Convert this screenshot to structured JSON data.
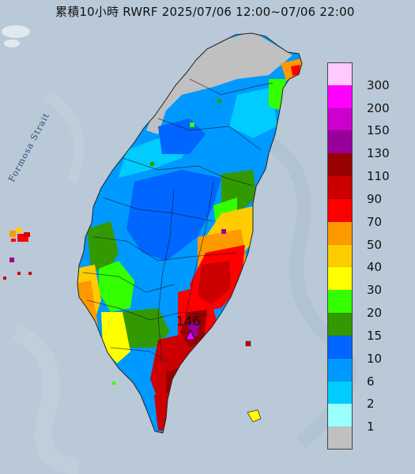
{
  "title": "累積10小時 RWRF 2025/07/06 12:00~07/06 22:00",
  "strait_label": "Formosa Strait",
  "peak": {
    "value": "146",
    "marker_color": "#ff00ff"
  },
  "legend": {
    "items": [
      {
        "label": "300",
        "color": "#ffc9ff"
      },
      {
        "label": "200",
        "color": "#ff00ff"
      },
      {
        "label": "150",
        "color": "#cc00cc"
      },
      {
        "label": "130",
        "color": "#990099"
      },
      {
        "label": "110",
        "color": "#990000"
      },
      {
        "label": "90",
        "color": "#cc0000"
      },
      {
        "label": "70",
        "color": "#ff0000"
      },
      {
        "label": "50",
        "color": "#ff9900"
      },
      {
        "label": "40",
        "color": "#ffcc00"
      },
      {
        "label": "30",
        "color": "#ffff00"
      },
      {
        "label": "20",
        "color": "#33ff00"
      },
      {
        "label": "15",
        "color": "#339900"
      },
      {
        "label": "10",
        "color": "#0066ff"
      },
      {
        "label": "6",
        "color": "#0099ff"
      },
      {
        "label": "2",
        "color": "#00ccff"
      },
      {
        "label": "1",
        "color": "#99ffff"
      },
      {
        "label": "",
        "color": "#c0c0c0"
      }
    ]
  },
  "colors": {
    "sea": "#b9c9d8",
    "land_gray": "#c0c0c0",
    "blue": "#0099ff",
    "dark_blue": "#0066ff",
    "light_blue": "#00ccff",
    "green_light": "#33ff00",
    "green_dark": "#339900",
    "yellow": "#ffff00",
    "orange_yellow": "#ffcc00",
    "orange": "#ff9900",
    "red": "#ff0000",
    "dark_red": "#cc0000",
    "maroon": "#990000",
    "purple": "#990099"
  }
}
